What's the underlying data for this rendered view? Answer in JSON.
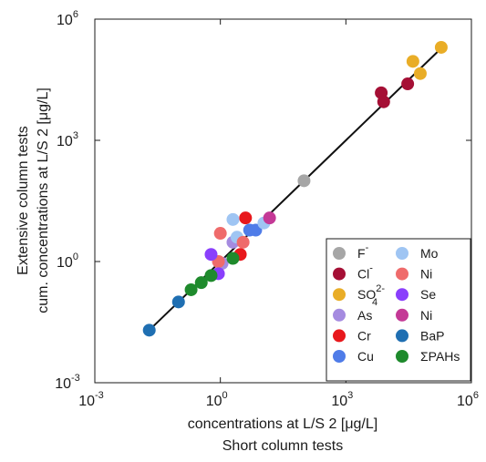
{
  "chart_data": {
    "type": "scatter",
    "xlabel_line1": "concentrations at L/S 2 [μg/L]",
    "xlabel_line2": "Short column tests",
    "ylabel_line1": "Extensive column tests",
    "ylabel_line2": "cum. concentrations at L/S 2 [μg/L]",
    "x_scale": "log",
    "y_scale": "log",
    "xlim": [
      0.001,
      1000000
    ],
    "ylim": [
      0.001,
      1000000
    ],
    "grid": false,
    "legend_position": "bottom-right",
    "x_ticks": [
      {
        "base": "10",
        "exp": "-3"
      },
      {
        "base": "10",
        "exp": "0"
      },
      {
        "base": "10",
        "exp": "3"
      },
      {
        "base": "10",
        "exp": "6"
      }
    ],
    "y_ticks": [
      {
        "base": "10",
        "exp": "-3"
      },
      {
        "base": "10",
        "exp": "0"
      },
      {
        "base": "10",
        "exp": "3"
      },
      {
        "base": "10",
        "exp": "6"
      }
    ],
    "fit_line": {
      "x": [
        0.02,
        200000
      ],
      "y": [
        0.02,
        200000
      ]
    },
    "series": [
      {
        "name": "F",
        "sup": "-",
        "sub": "",
        "color": "#a6a6a6",
        "points": [
          [
            100,
            100
          ]
        ]
      },
      {
        "name": "Cl",
        "sup": "-",
        "sub": "",
        "color": "#a50f35",
        "points": [
          [
            7000,
            15000
          ],
          [
            8000,
            9000
          ],
          [
            30000,
            25000
          ]
        ]
      },
      {
        "name": "SO",
        "sup": "2-",
        "sub": "4",
        "color": "#e9ad27",
        "points": [
          [
            40000,
            90000
          ],
          [
            60000,
            45000
          ],
          [
            190000,
            200000
          ]
        ]
      },
      {
        "name": "As",
        "sup": "",
        "sub": "",
        "color": "#a58be0",
        "points": [
          [
            2,
            3
          ],
          [
            1.1,
            0.9
          ]
        ]
      },
      {
        "name": "Cr",
        "sup": "",
        "sub": "",
        "color": "#e8181c",
        "points": [
          [
            4,
            12
          ],
          [
            3,
            1.5
          ]
        ]
      },
      {
        "name": "Cu",
        "sup": "",
        "sub": "",
        "color": "#4f7ce8",
        "points": [
          [
            5,
            6
          ],
          [
            7,
            6
          ]
        ]
      },
      {
        "name": "Mo",
        "sup": "",
        "sub": "",
        "color": "#9fc5f3",
        "points": [
          [
            2,
            11
          ],
          [
            2.5,
            4
          ],
          [
            11,
            9
          ]
        ]
      },
      {
        "name": "Ni",
        "sup": "",
        "sub": "",
        "color": "#ef6b6b",
        "points": [
          [
            1,
            5
          ],
          [
            3.5,
            3
          ],
          [
            0.9,
            1
          ]
        ]
      },
      {
        "name": "Se",
        "sup": "",
        "sub": "",
        "color": "#8a3ffc",
        "points": [
          [
            0.6,
            1.5
          ],
          [
            0.9,
            0.5
          ]
        ]
      },
      {
        "name": "Ni",
        "sup": "",
        "sub": "",
        "color": "#c43996",
        "points": [
          [
            15,
            12
          ]
        ]
      },
      {
        "name": "BaP",
        "sup": "",
        "sub": "",
        "color": "#1f6fb2",
        "points": [
          [
            0.02,
            0.02
          ],
          [
            0.1,
            0.1
          ]
        ]
      },
      {
        "name": "ΣPAHs",
        "sup": "",
        "sub": "",
        "color": "#1e8a2c",
        "points": [
          [
            0.2,
            0.2
          ],
          [
            0.6,
            0.45
          ],
          [
            2,
            1.2
          ],
          [
            0.35,
            0.3
          ]
        ]
      }
    ]
  }
}
